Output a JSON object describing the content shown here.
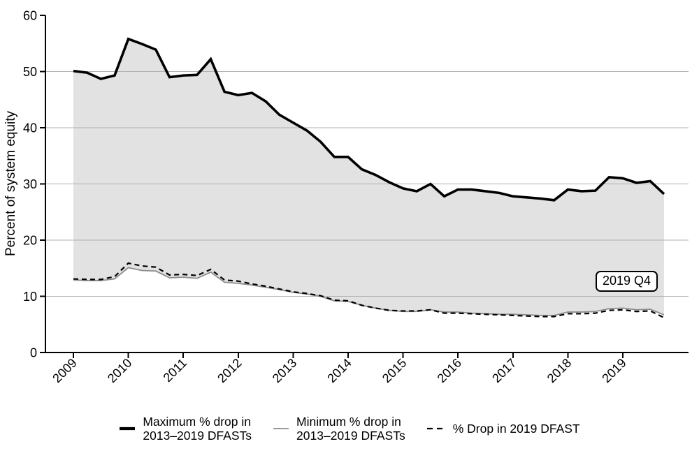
{
  "chart_data": {
    "type": "line",
    "title": "",
    "ylabel": "Percent of system equity",
    "xlabel": "",
    "x_frequency": "quarterly",
    "x_range": [
      "2009 Q1",
      "2019 Q4"
    ],
    "x_tick_labels": [
      "2009",
      "2010",
      "2011",
      "2012",
      "2013",
      "2014",
      "2015",
      "2016",
      "2017",
      "2018",
      "2019"
    ],
    "ylim": [
      0,
      60
    ],
    "yticks": [
      0,
      10,
      20,
      30,
      40,
      50,
      60
    ],
    "gridline_values": [
      10,
      20,
      30,
      40,
      50
    ],
    "grid": "horizontal-only",
    "legend_position": "bottom",
    "annotation": {
      "text": "2019 Q4"
    },
    "band_fill_color": "#e2e2e2",
    "band_between": [
      "Maximum % drop in 2013–2019 DFASTs",
      "Minimum % drop in 2013–2019 DFASTs"
    ],
    "series": [
      {
        "name": "Maximum % drop in 2013–2019 DFASTs",
        "style": "solid-thick",
        "color": "#000000",
        "values": [
          50.1,
          49.8,
          48.7,
          49.3,
          55.8,
          54.9,
          53.9,
          49.0,
          49.3,
          49.4,
          52.2,
          46.4,
          45.8,
          46.2,
          44.7,
          42.3,
          40.9,
          39.5,
          37.5,
          34.8,
          34.8,
          32.6,
          31.6,
          30.3,
          29.2,
          28.7,
          30.0,
          27.8,
          29.0,
          29.0,
          28.7,
          28.4,
          27.8,
          27.6,
          27.4,
          27.1,
          29.0,
          28.7,
          28.8,
          31.2,
          31.0,
          30.2,
          30.5,
          28.2
        ]
      },
      {
        "name": "Minimum % drop in 2013–2019 DFASTs",
        "style": "solid-thin",
        "color": "#8c8c8c",
        "values": [
          12.9,
          12.8,
          12.8,
          13.1,
          15.1,
          14.6,
          14.5,
          13.3,
          13.4,
          13.2,
          14.3,
          12.5,
          12.3,
          12.0,
          11.6,
          11.2,
          10.7,
          10.4,
          10.0,
          9.2,
          9.1,
          8.4,
          7.9,
          7.5,
          7.3,
          7.3,
          7.6,
          7.2,
          7.2,
          7.0,
          6.9,
          6.8,
          6.8,
          6.7,
          6.6,
          6.6,
          7.2,
          7.2,
          7.3,
          7.8,
          7.9,
          7.6,
          7.7,
          6.7
        ]
      },
      {
        "name": "% Drop in 2019 DFAST",
        "style": "dashed",
        "color": "#000000",
        "values": [
          13.1,
          13.0,
          13.0,
          13.5,
          15.9,
          15.4,
          15.2,
          13.8,
          13.9,
          13.7,
          14.8,
          12.9,
          12.7,
          12.2,
          11.8,
          11.3,
          10.8,
          10.5,
          10.1,
          9.3,
          9.2,
          8.4,
          7.9,
          7.5,
          7.4,
          7.4,
          7.6,
          7.0,
          7.0,
          6.9,
          6.8,
          6.7,
          6.6,
          6.5,
          6.4,
          6.4,
          6.9,
          6.9,
          7.0,
          7.5,
          7.6,
          7.3,
          7.4,
          6.2
        ]
      }
    ]
  },
  "legend": {
    "items": [
      {
        "swatch": "thick-black-line",
        "lines": [
          "Maximum % drop in",
          "2013–2019 DFASTs"
        ]
      },
      {
        "swatch": "thin-gray-line",
        "lines": [
          "Minimum % drop in",
          "2013–2019 DFASTs"
        ]
      },
      {
        "swatch": "dashed-black-line",
        "lines": [
          "% Drop in 2019 DFAST"
        ]
      }
    ]
  },
  "colors": {
    "max_line": "#000000",
    "min_line": "#8c8c8c",
    "dashed_line": "#000000",
    "band": "#e2e2e2",
    "gridline": "#b0b0b0",
    "axis": "#000000",
    "background": "#ffffff"
  }
}
